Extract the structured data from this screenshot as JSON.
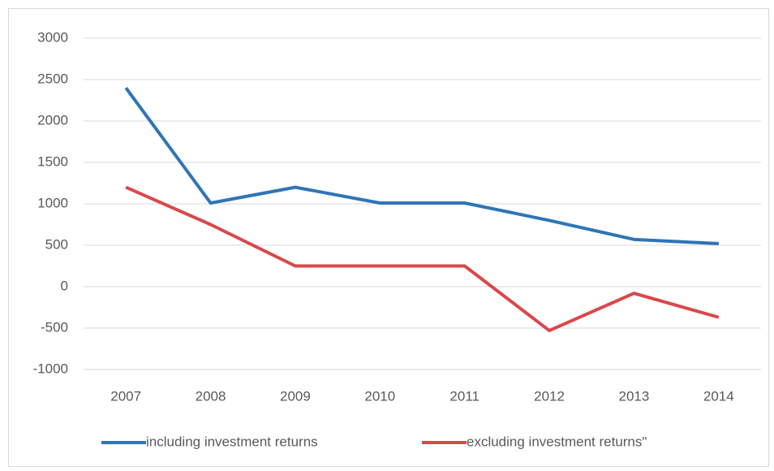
{
  "chart_data": {
    "type": "line",
    "categories": [
      "2007",
      "2008",
      "2009",
      "2010",
      "2011",
      "2012",
      "2013",
      "2014"
    ],
    "series": [
      {
        "name": "including investment returns",
        "color": "#2e75b6",
        "values": [
          2400,
          1010,
          1200,
          1010,
          1010,
          800,
          570,
          520
        ]
      },
      {
        "name": "excluding investment returns\"",
        "color": "#d9484b",
        "values": [
          1200,
          750,
          250,
          250,
          250,
          -530,
          -80,
          -370
        ]
      }
    ],
    "ylim": [
      -1000,
      3000
    ],
    "yticks": [
      -1000,
      -500,
      0,
      500,
      1000,
      1500,
      2000,
      2500,
      3000
    ],
    "grid": true,
    "legend": "bottom"
  }
}
